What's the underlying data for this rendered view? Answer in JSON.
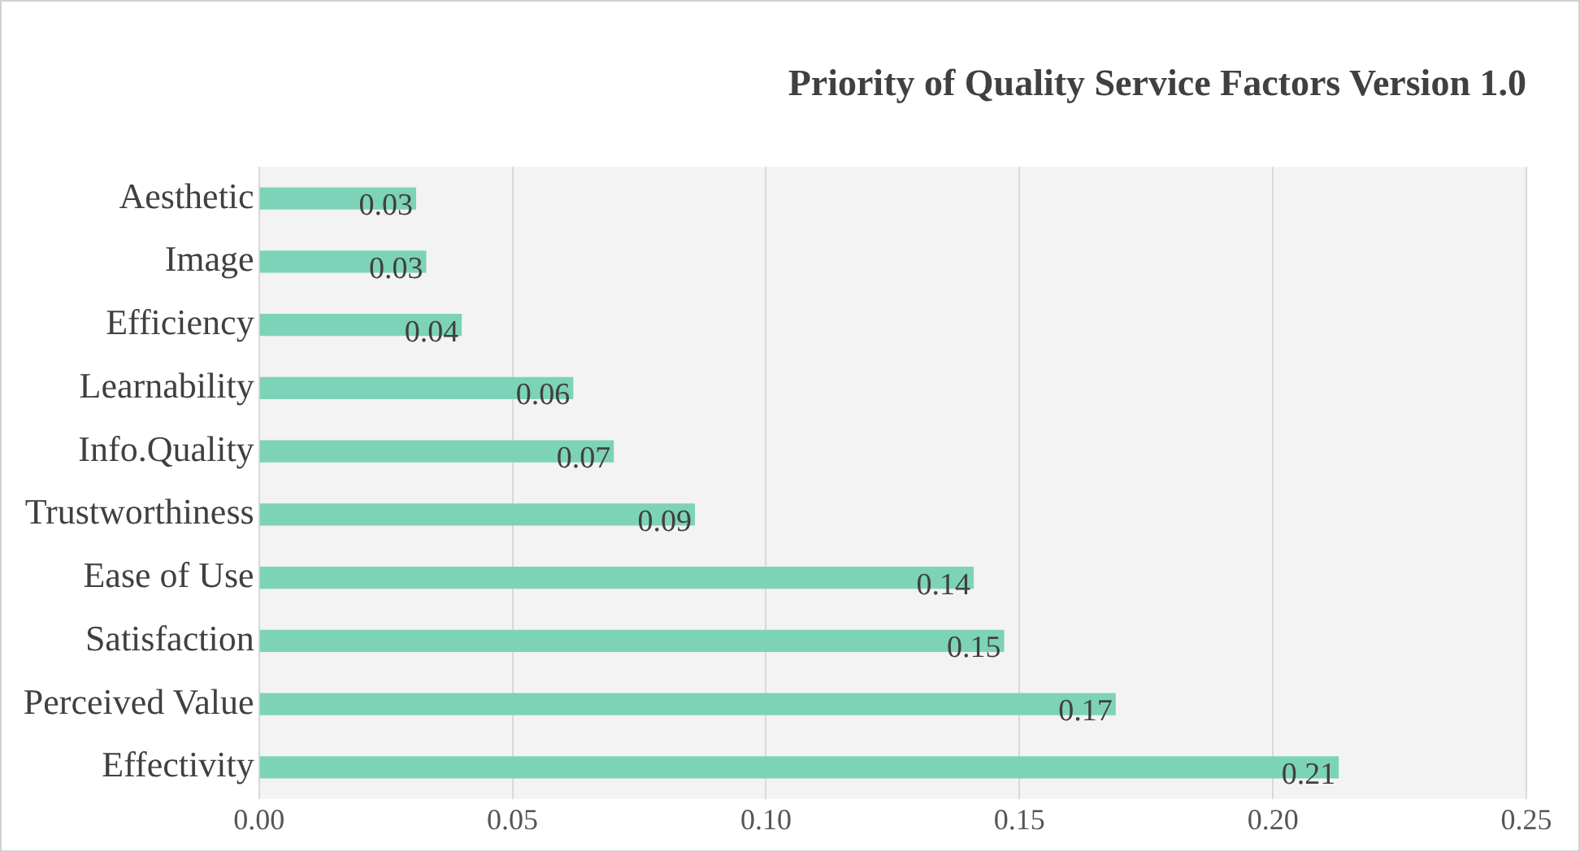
{
  "chart_data": {
    "type": "bar",
    "orientation": "horizontal",
    "title": "Priority of Quality Service Factors Version 1.0",
    "categories": [
      "Aesthetic",
      "Image",
      "Efficiency",
      "Learnability",
      "Info.Quality",
      "Trustworthiness",
      "Ease of Use",
      "Satisfaction",
      "Perceived Value",
      "Effectivity"
    ],
    "values": [
      0.031,
      0.033,
      0.04,
      0.062,
      0.07,
      0.086,
      0.141,
      0.147,
      0.169,
      0.213
    ],
    "value_labels": [
      "0.03",
      "0.03",
      "0.04",
      "0.06",
      "0.07",
      "0.09",
      "0.14",
      "0.15",
      "0.17",
      "0.21"
    ],
    "color": "#7dd3b8",
    "xlim": [
      0,
      0.25
    ],
    "xticks": [
      {
        "value": 0,
        "label": "0.00"
      },
      {
        "value": 0.05,
        "label": "0.05"
      },
      {
        "value": 0.1,
        "label": "0.10"
      },
      {
        "value": 0.15,
        "label": "0.15"
      },
      {
        "value": 0.2,
        "label": "0.20"
      },
      {
        "value": 0.25,
        "label": "0.25"
      }
    ],
    "grid": "x"
  }
}
